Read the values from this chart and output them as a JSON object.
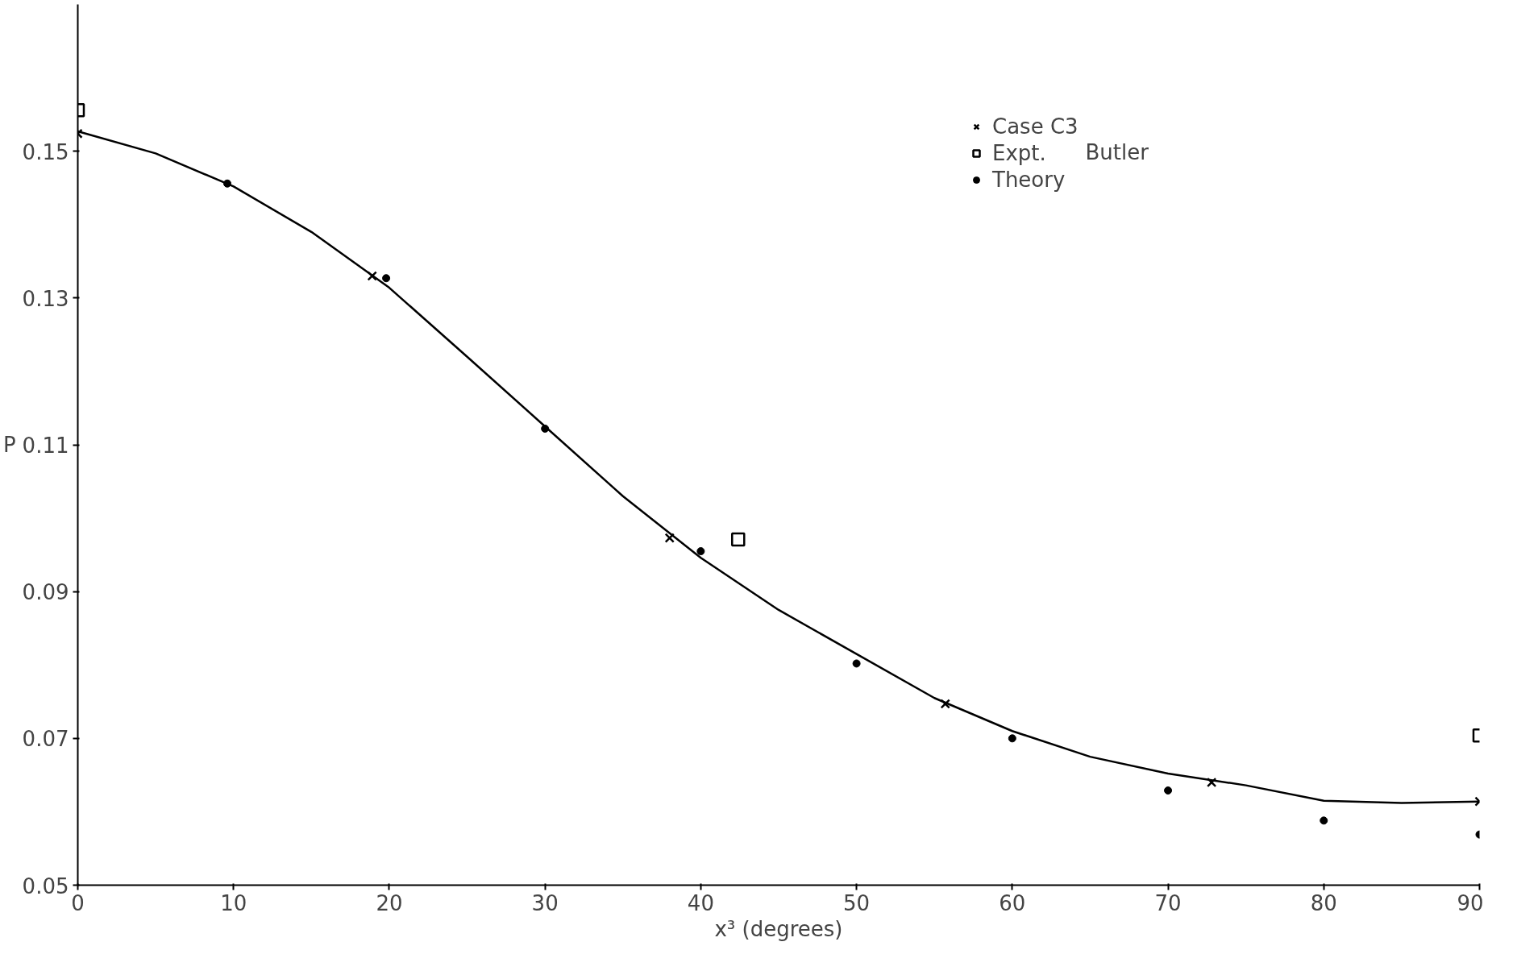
{
  "chart_data": {
    "type": "scatter",
    "xlabel": "x³ (degrees)",
    "ylabel": "P",
    "xlim": [
      0,
      90
    ],
    "ylim": [
      0.05,
      0.17
    ],
    "xticks": [
      0,
      10,
      20,
      30,
      40,
      50,
      60,
      70,
      80,
      90
    ],
    "yticks": [
      0.05,
      0.07,
      0.09,
      0.11,
      0.13,
      0.15
    ],
    "grid": false,
    "legend": "top right",
    "annotations": [
      "Butler"
    ],
    "series": [
      {
        "type": "line",
        "color": "#000000",
        "marker": "none",
        "x": [
          0,
          5,
          10,
          15,
          20,
          25,
          30,
          35,
          40,
          45,
          50,
          55,
          60,
          65,
          70,
          75,
          80,
          85,
          90
        ],
        "values": [
          0.1527,
          0.1497,
          0.1452,
          0.139,
          0.1314,
          0.122,
          0.1125,
          0.103,
          0.0946,
          0.0875,
          0.0815,
          0.0755,
          0.071,
          0.0675,
          0.0652,
          0.0636,
          0.0615,
          0.0612,
          0.0614
        ]
      },
      {
        "name": "Case C3",
        "color": "#000000",
        "marker": "cross",
        "x": [
          0,
          18.9,
          38.0,
          55.7,
          72.8,
          90
        ],
        "values": [
          0.1524,
          0.133,
          0.0973,
          0.0747,
          0.064,
          0.0614
        ]
      },
      {
        "name": "Expt.",
        "color": "#000000",
        "marker": "square",
        "x": [
          0,
          42.4,
          90
        ],
        "values": [
          0.1556,
          0.0971,
          0.0704
        ]
      },
      {
        "name": "Theory",
        "color": "#000000",
        "marker": "circle",
        "x": [
          9.6,
          19.8,
          30,
          40,
          50,
          60,
          70,
          80,
          90
        ],
        "values": [
          0.1456,
          0.1327,
          0.1122,
          0.0955,
          0.0802,
          0.07,
          0.0629,
          0.0588,
          0.0569
        ]
      }
    ]
  }
}
